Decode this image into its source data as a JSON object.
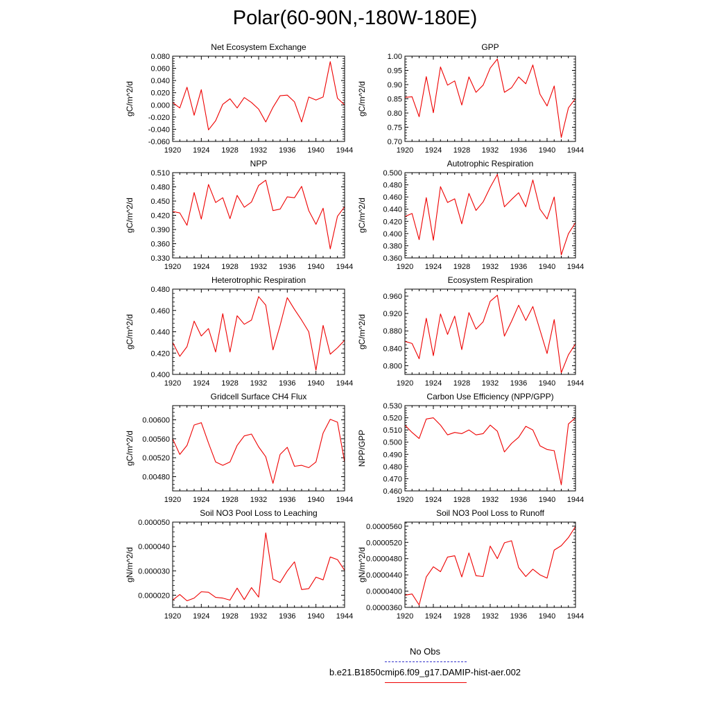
{
  "page_title": "Polar(60-90N,-180W-180E)",
  "colors": {
    "model_line": "#ee0000",
    "obs_line": "#3333cc",
    "axis": "#000000"
  },
  "legend": {
    "obs_label": "No Obs",
    "model_label": "b.e21.B1850cmip6.f09_g17.DAMIP-hist-aer.002"
  },
  "chart_data": [
    {
      "type": "line",
      "title": "Net Ecosystem Exchange",
      "ylabel": "gC/m^2/d",
      "xlim": [
        1920,
        1944
      ],
      "ylim": [
        -0.06,
        0.08
      ],
      "xticks": [
        1920,
        1924,
        1928,
        1932,
        1936,
        1940,
        1944
      ],
      "yticks": [
        -0.06,
        -0.04,
        -0.02,
        0.0,
        0.02,
        0.04,
        0.06,
        0.08
      ],
      "ytick_labels": [
        "-0.060",
        "-0.040",
        "-0.020",
        "0.000",
        "0.020",
        "0.040",
        "0.060",
        "0.080"
      ],
      "x": [
        1920,
        1921,
        1922,
        1923,
        1924,
        1925,
        1926,
        1927,
        1928,
        1929,
        1930,
        1931,
        1932,
        1933,
        1934,
        1935,
        1936,
        1937,
        1938,
        1939,
        1940,
        1941,
        1942,
        1943,
        1944
      ],
      "series": [
        {
          "values": [
            0.004,
            -0.005,
            0.029,
            -0.017,
            0.025,
            -0.041,
            -0.026,
            0.001,
            0.01,
            -0.005,
            0.012,
            0.004,
            -0.007,
            -0.028,
            -0.004,
            0.015,
            0.016,
            0.005,
            -0.028,
            0.013,
            0.008,
            0.013,
            0.071,
            0.011,
            0.0
          ]
        }
      ]
    },
    {
      "type": "line",
      "title": "GPP",
      "ylabel": "gC/m^2/d",
      "xlim": [
        1920,
        1944
      ],
      "ylim": [
        0.7,
        1.0
      ],
      "xticks": [
        1920,
        1924,
        1928,
        1932,
        1936,
        1940,
        1944
      ],
      "yticks": [
        0.7,
        0.75,
        0.8,
        0.85,
        0.9,
        0.95,
        1.0
      ],
      "ytick_labels": [
        "0.70",
        "0.75",
        "0.80",
        "0.85",
        "0.90",
        "0.95",
        "1.00"
      ],
      "x": [
        1920,
        1921,
        1922,
        1923,
        1924,
        1925,
        1926,
        1927,
        1928,
        1929,
        1930,
        1931,
        1932,
        1933,
        1934,
        1935,
        1936,
        1937,
        1938,
        1939,
        1940,
        1941,
        1942,
        1943,
        1944
      ],
      "series": [
        {
          "values": [
            0.855,
            0.857,
            0.787,
            0.928,
            0.801,
            0.962,
            0.898,
            0.913,
            0.828,
            0.927,
            0.873,
            0.898,
            0.958,
            0.99,
            0.873,
            0.889,
            0.927,
            0.903,
            0.969,
            0.866,
            0.825,
            0.895,
            0.714,
            0.818,
            0.851
          ]
        }
      ]
    },
    {
      "type": "line",
      "title": "NPP",
      "ylabel": "gC/m^2/d",
      "xlim": [
        1920,
        1944
      ],
      "ylim": [
        0.33,
        0.51
      ],
      "xticks": [
        1920,
        1924,
        1928,
        1932,
        1936,
        1940,
        1944
      ],
      "yticks": [
        0.33,
        0.36,
        0.39,
        0.42,
        0.45,
        0.48,
        0.51
      ],
      "ytick_labels": [
        "0.330",
        "0.360",
        "0.390",
        "0.420",
        "0.450",
        "0.480",
        "0.510"
      ],
      "x": [
        1920,
        1921,
        1922,
        1923,
        1924,
        1925,
        1926,
        1927,
        1928,
        1929,
        1930,
        1931,
        1932,
        1933,
        1934,
        1935,
        1936,
        1937,
        1938,
        1939,
        1940,
        1941,
        1942,
        1943,
        1944
      ],
      "series": [
        {
          "values": [
            0.428,
            0.425,
            0.399,
            0.468,
            0.412,
            0.485,
            0.447,
            0.457,
            0.413,
            0.462,
            0.437,
            0.448,
            0.483,
            0.494,
            0.43,
            0.433,
            0.459,
            0.457,
            0.481,
            0.43,
            0.401,
            0.435,
            0.349,
            0.418,
            0.438
          ]
        }
      ]
    },
    {
      "type": "line",
      "title": "Autotrophic Respiration",
      "ylabel": "gC/m^2/d",
      "xlim": [
        1920,
        1944
      ],
      "ylim": [
        0.36,
        0.5
      ],
      "xticks": [
        1920,
        1924,
        1928,
        1932,
        1936,
        1940,
        1944
      ],
      "yticks": [
        0.36,
        0.38,
        0.4,
        0.42,
        0.44,
        0.46,
        0.48,
        0.5
      ],
      "ytick_labels": [
        "0.360",
        "0.380",
        "0.400",
        "0.420",
        "0.440",
        "0.460",
        "0.480",
        "0.500"
      ],
      "x": [
        1920,
        1921,
        1922,
        1923,
        1924,
        1925,
        1926,
        1927,
        1928,
        1929,
        1930,
        1931,
        1932,
        1933,
        1934,
        1935,
        1936,
        1937,
        1938,
        1939,
        1940,
        1941,
        1942,
        1943,
        1944
      ],
      "series": [
        {
          "values": [
            0.428,
            0.433,
            0.39,
            0.459,
            0.389,
            0.477,
            0.451,
            0.457,
            0.416,
            0.466,
            0.438,
            0.452,
            0.476,
            0.497,
            0.444,
            0.456,
            0.467,
            0.444,
            0.488,
            0.44,
            0.424,
            0.46,
            0.365,
            0.4,
            0.418
          ]
        }
      ]
    },
    {
      "type": "line",
      "title": "Heterotrophic Respiration",
      "ylabel": "gC/m^2/d",
      "xlim": [
        1920,
        1944
      ],
      "ylim": [
        0.4,
        0.48
      ],
      "xticks": [
        1920,
        1924,
        1928,
        1932,
        1936,
        1940,
        1944
      ],
      "yticks": [
        0.4,
        0.42,
        0.44,
        0.46,
        0.48
      ],
      "ytick_labels": [
        "0.400",
        "0.420",
        "0.440",
        "0.460",
        "0.480"
      ],
      "x": [
        1920,
        1921,
        1922,
        1923,
        1924,
        1925,
        1926,
        1927,
        1928,
        1929,
        1930,
        1931,
        1932,
        1933,
        1934,
        1935,
        1936,
        1937,
        1938,
        1939,
        1940,
        1941,
        1942,
        1943,
        1944
      ],
      "series": [
        {
          "values": [
            0.43,
            0.417,
            0.426,
            0.45,
            0.436,
            0.443,
            0.421,
            0.457,
            0.421,
            0.455,
            0.447,
            0.451,
            0.473,
            0.465,
            0.423,
            0.446,
            0.472,
            0.461,
            0.451,
            0.44,
            0.404,
            0.446,
            0.419,
            0.425,
            0.432
          ]
        }
      ]
    },
    {
      "type": "line",
      "title": "Ecosystem Respiration",
      "ylabel": "gC/m^2/d",
      "xlim": [
        1920,
        1944
      ],
      "ylim": [
        0.78,
        0.976
      ],
      "xticks": [
        1920,
        1924,
        1928,
        1932,
        1936,
        1940,
        1944
      ],
      "yticks": [
        0.8,
        0.84,
        0.88,
        0.92,
        0.96
      ],
      "ytick_labels": [
        "0.800",
        "0.840",
        "0.880",
        "0.920",
        "0.960"
      ],
      "x": [
        1920,
        1921,
        1922,
        1923,
        1924,
        1925,
        1926,
        1927,
        1928,
        1929,
        1930,
        1931,
        1932,
        1933,
        1934,
        1935,
        1936,
        1937,
        1938,
        1939,
        1940,
        1941,
        1942,
        1943,
        1944
      ],
      "series": [
        {
          "values": [
            0.856,
            0.851,
            0.816,
            0.909,
            0.823,
            0.919,
            0.872,
            0.914,
            0.837,
            0.922,
            0.884,
            0.901,
            0.948,
            0.962,
            0.868,
            0.902,
            0.939,
            0.904,
            0.936,
            0.882,
            0.828,
            0.906,
            0.784,
            0.825,
            0.85
          ]
        }
      ]
    },
    {
      "type": "line",
      "title": "Gridcell Surface CH4 Flux",
      "ylabel": "gC/m^2/d",
      "xlim": [
        1920,
        1944
      ],
      "ylim": [
        0.0045,
        0.0063
      ],
      "xticks": [
        1920,
        1924,
        1928,
        1932,
        1936,
        1940,
        1944
      ],
      "yticks": [
        0.0048,
        0.0052,
        0.0056,
        0.006
      ],
      "ytick_labels": [
        "0.00480",
        "0.00520",
        "0.00560",
        "0.00600"
      ],
      "x": [
        1920,
        1921,
        1922,
        1923,
        1924,
        1925,
        1926,
        1927,
        1928,
        1929,
        1930,
        1931,
        1932,
        1933,
        1934,
        1935,
        1936,
        1937,
        1938,
        1939,
        1940,
        1941,
        1942,
        1943,
        1944
      ],
      "series": [
        {
          "values": [
            0.0056,
            0.00527,
            0.00546,
            0.00589,
            0.00594,
            0.00551,
            0.00511,
            0.00504,
            0.00511,
            0.00546,
            0.00566,
            0.0057,
            0.00543,
            0.00522,
            0.00466,
            0.00527,
            0.00542,
            0.00502,
            0.00504,
            0.00499,
            0.00511,
            0.00572,
            0.00601,
            0.00595,
            0.00511
          ]
        }
      ]
    },
    {
      "type": "line",
      "title": "Carbon Use Efficiency (NPP/GPP)",
      "ylabel": "NPP/GPP",
      "xlim": [
        1920,
        1944
      ],
      "ylim": [
        0.46,
        0.53
      ],
      "xticks": [
        1920,
        1924,
        1928,
        1932,
        1936,
        1940,
        1944
      ],
      "yticks": [
        0.46,
        0.47,
        0.48,
        0.49,
        0.5,
        0.51,
        0.52,
        0.53
      ],
      "ytick_labels": [
        "0.460",
        "0.470",
        "0.480",
        "0.490",
        "0.500",
        "0.510",
        "0.520",
        "0.530"
      ],
      "x": [
        1920,
        1921,
        1922,
        1923,
        1924,
        1925,
        1926,
        1927,
        1928,
        1929,
        1930,
        1931,
        1932,
        1933,
        1934,
        1935,
        1936,
        1937,
        1938,
        1939,
        1940,
        1941,
        1942,
        1943,
        1944
      ],
      "series": [
        {
          "values": [
            0.514,
            0.508,
            0.503,
            0.519,
            0.52,
            0.514,
            0.506,
            0.508,
            0.507,
            0.51,
            0.506,
            0.507,
            0.514,
            0.509,
            0.492,
            0.499,
            0.504,
            0.513,
            0.51,
            0.497,
            0.494,
            0.493,
            0.465,
            0.515,
            0.52
          ]
        }
      ]
    },
    {
      "type": "line",
      "title": "Soil NO3 Pool Loss to Leaching",
      "ylabel": "gN/m^2/d",
      "xlim": [
        1920,
        1944
      ],
      "ylim": [
        1.5e-05,
        5e-05
      ],
      "xticks": [
        1920,
        1924,
        1928,
        1932,
        1936,
        1940,
        1944
      ],
      "yticks": [
        2e-05,
        3e-05,
        4e-05,
        5e-05
      ],
      "ytick_labels": [
        "0.000020",
        "0.000030",
        "0.000040",
        "0.000050"
      ],
      "x": [
        1920,
        1921,
        1922,
        1923,
        1924,
        1925,
        1926,
        1927,
        1928,
        1929,
        1930,
        1931,
        1932,
        1933,
        1934,
        1935,
        1936,
        1937,
        1938,
        1939,
        1940,
        1941,
        1942,
        1943,
        1944
      ],
      "series": [
        {
          "values": [
            1.8e-05,
            2.03e-05,
            1.77e-05,
            1.88e-05,
            2.14e-05,
            2.12e-05,
            1.91e-05,
            1.88e-05,
            1.8e-05,
            2.29e-05,
            1.82e-05,
            2.31e-05,
            1.92e-05,
            4.56e-05,
            2.66e-05,
            2.52e-05,
            2.99e-05,
            3.37e-05,
            2.23e-05,
            2.27e-05,
            2.74e-05,
            2.63e-05,
            3.57e-05,
            3.46e-05,
            3.02e-05
          ]
        }
      ]
    },
    {
      "type": "line",
      "title": "Soil NO3 Pool Loss to Runoff",
      "ylabel": "gN/m^2/d",
      "xlim": [
        1920,
        1944
      ],
      "ylim": [
        3.6e-05,
        5.7e-05
      ],
      "xticks": [
        1920,
        1924,
        1928,
        1932,
        1936,
        1940,
        1944
      ],
      "yticks": [
        3.6e-05,
        4e-05,
        4.4e-05,
        4.8e-05,
        5.2e-05,
        5.6e-05
      ],
      "ytick_labels": [
        "0.0000360",
        "0.0000400",
        "0.0000440",
        "0.0000480",
        "0.0000520",
        "0.0000560"
      ],
      "x": [
        1920,
        1921,
        1922,
        1923,
        1924,
        1925,
        1926,
        1927,
        1928,
        1929,
        1930,
        1931,
        1932,
        1933,
        1934,
        1935,
        1936,
        1937,
        1938,
        1939,
        1940,
        1941,
        1942,
        1943,
        1944
      ],
      "series": [
        {
          "values": [
            3.9e-05,
            3.93e-05,
            3.66e-05,
            4.35e-05,
            4.6e-05,
            4.48e-05,
            4.84e-05,
            4.87e-05,
            4.35e-05,
            4.94e-05,
            4.38e-05,
            4.36e-05,
            5.11e-05,
            4.8e-05,
            5.19e-05,
            5.24e-05,
            4.58e-05,
            4.36e-05,
            4.54e-05,
            4.4e-05,
            4.32e-05,
            5.01e-05,
            5.12e-05,
            5.32e-05,
            5.59e-05
          ]
        }
      ]
    }
  ]
}
